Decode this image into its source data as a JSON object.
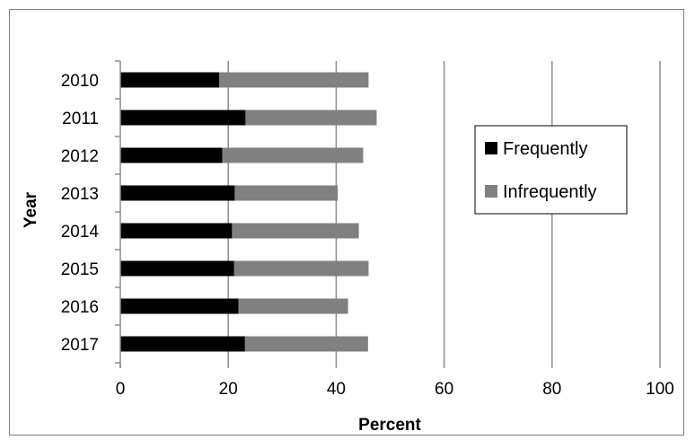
{
  "chart_data": {
    "type": "bar",
    "orientation": "horizontal",
    "stacked": true,
    "categories": [
      "2010",
      "2011",
      "2012",
      "2013",
      "2014",
      "2015",
      "2016",
      "2017"
    ],
    "series": [
      {
        "name": "Frequently",
        "color": "#000000",
        "values": [
          18.3,
          23.2,
          18.9,
          21.2,
          20.7,
          21.1,
          21.9,
          23.1
        ]
      },
      {
        "name": "Infrequently",
        "color": "#808080",
        "values": [
          27.7,
          24.3,
          26.1,
          19.1,
          23.5,
          24.9,
          20.3,
          22.8
        ]
      }
    ],
    "xlabel": "Percent",
    "ylabel": "Year",
    "xlim": [
      0,
      100
    ],
    "xticks": [
      "0",
      "20",
      "40",
      "60",
      "80",
      "100"
    ],
    "grid": "vertical",
    "legend": "right"
  }
}
